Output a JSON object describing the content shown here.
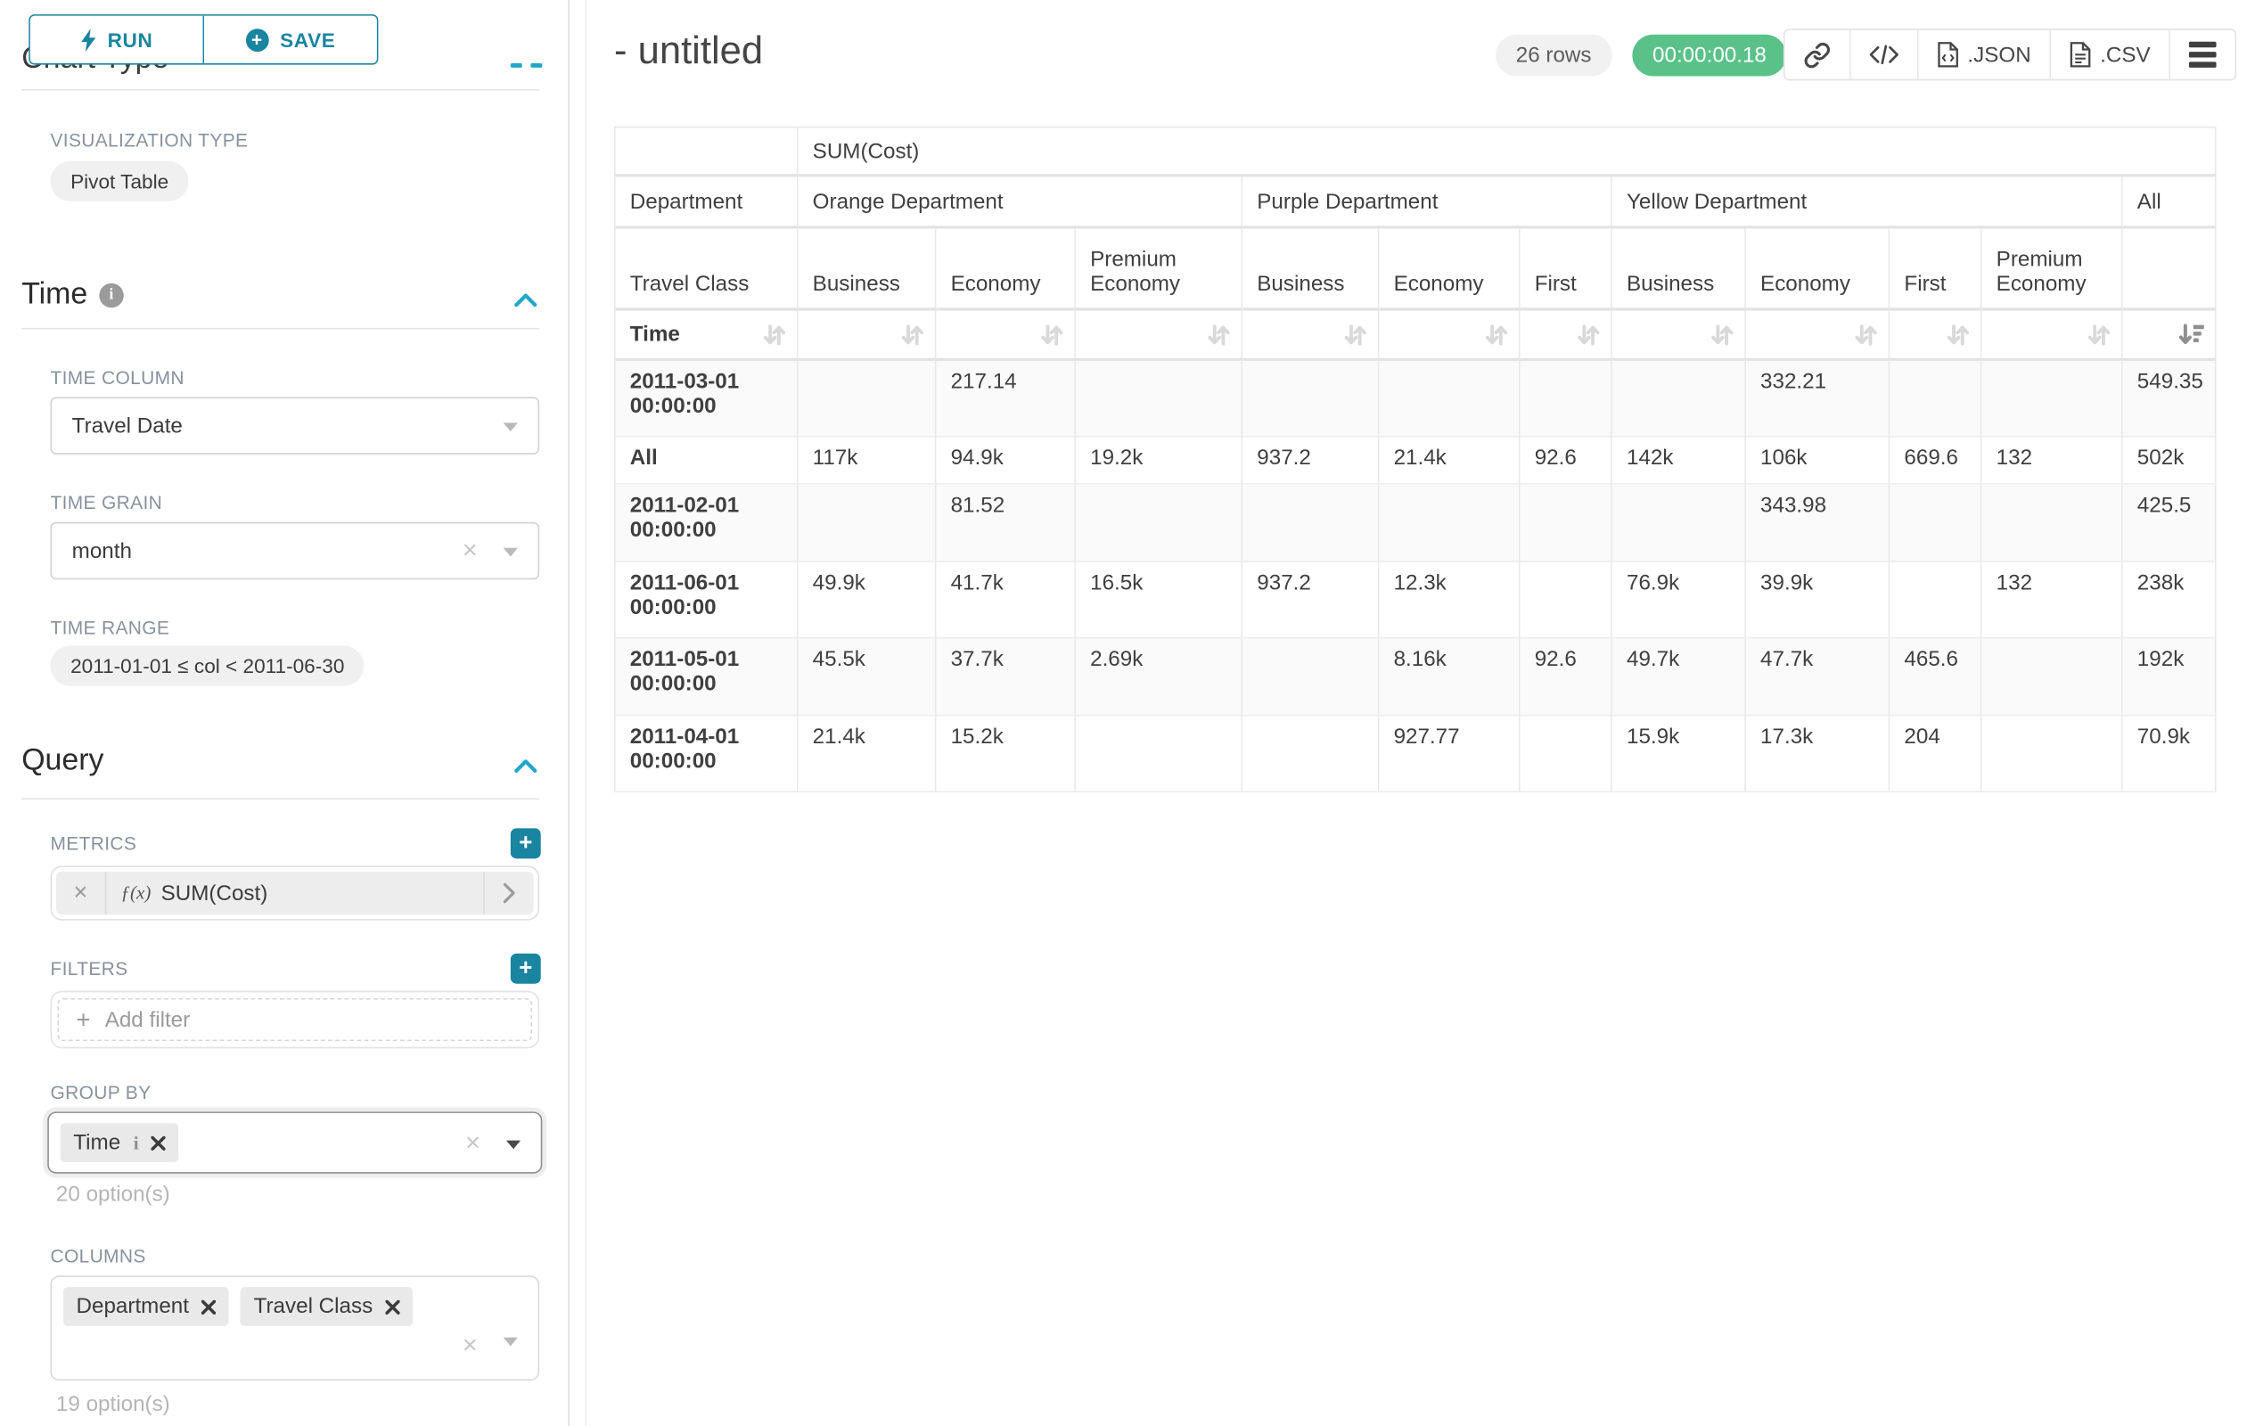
{
  "sidebar": {
    "run_button": "RUN",
    "save_button": "SAVE",
    "scrolled_section_title": "Chart Type",
    "visualization_type": {
      "label": "VISUALIZATION TYPE",
      "value": "Pivot Table"
    },
    "time_section": {
      "title": "Time",
      "time_column": {
        "label": "TIME COLUMN",
        "value": "Travel Date"
      },
      "time_grain": {
        "label": "TIME GRAIN",
        "value": "month"
      },
      "time_range": {
        "label": "TIME RANGE",
        "value": "2011-01-01 ≤ col < 2011-06-30"
      }
    },
    "query_section": {
      "title": "Query",
      "metrics": {
        "label": "METRICS",
        "fx": "ƒ(x)",
        "value": "SUM(Cost)"
      },
      "filters": {
        "label": "FILTERS",
        "placeholder": "Add filter"
      },
      "group_by": {
        "label": "GROUP BY",
        "chips": [
          "Time"
        ],
        "hint": "20 option(s)"
      },
      "columns": {
        "label": "COLUMNS",
        "chips": [
          "Department",
          "Travel Class"
        ],
        "hint": "19 option(s)"
      }
    }
  },
  "header": {
    "title": "- untitled",
    "row_count": "26 rows",
    "timer": "00:00:00.18",
    "export_json": ".JSON",
    "export_csv": ".CSV"
  },
  "pivot": {
    "metric_header": "SUM(Cost)",
    "row_dim_label": "Department",
    "col_groups": [
      {
        "label": "Orange Department",
        "span": 3
      },
      {
        "label": "Purple Department",
        "span": 3
      },
      {
        "label": "Yellow Department",
        "span": 4
      },
      {
        "label": "All",
        "span": 1
      }
    ],
    "subdim_label": "Travel Class",
    "subheaders": [
      "Business",
      "Economy",
      "Premium Economy",
      "Business",
      "Economy",
      "First",
      "Business",
      "Economy",
      "First",
      "Premium Economy",
      ""
    ],
    "time_label": "Time",
    "rows": [
      {
        "label": "2011-03-01 00:00:00",
        "values": [
          "",
          "217.14",
          "",
          "",
          "",
          "",
          "",
          "332.21",
          "",
          "",
          "549.35"
        ]
      },
      {
        "label": "All",
        "values": [
          "117k",
          "94.9k",
          "19.2k",
          "937.2",
          "21.4k",
          "92.6",
          "142k",
          "106k",
          "669.6",
          "132",
          "502k"
        ]
      },
      {
        "label": "2011-02-01 00:00:00",
        "values": [
          "",
          "81.52",
          "",
          "",
          "",
          "",
          "",
          "343.98",
          "",
          "",
          "425.5"
        ]
      },
      {
        "label": "2011-06-01 00:00:00",
        "values": [
          "49.9k",
          "41.7k",
          "16.5k",
          "937.2",
          "12.3k",
          "",
          "76.9k",
          "39.9k",
          "",
          "132",
          "238k"
        ]
      },
      {
        "label": "2011-05-01 00:00:00",
        "values": [
          "45.5k",
          "37.7k",
          "2.69k",
          "",
          "8.16k",
          "92.6",
          "49.7k",
          "47.7k",
          "465.6",
          "",
          "192k"
        ]
      },
      {
        "label": "2011-04-01 00:00:00",
        "values": [
          "21.4k",
          "15.2k",
          "",
          "",
          "927.77",
          "",
          "15.9k",
          "17.3k",
          "204",
          "",
          "70.9k"
        ]
      }
    ]
  },
  "colors": {
    "accent": "#1a85a0",
    "collapse_chevron": "#20a7c9",
    "success": "#5ac189"
  }
}
